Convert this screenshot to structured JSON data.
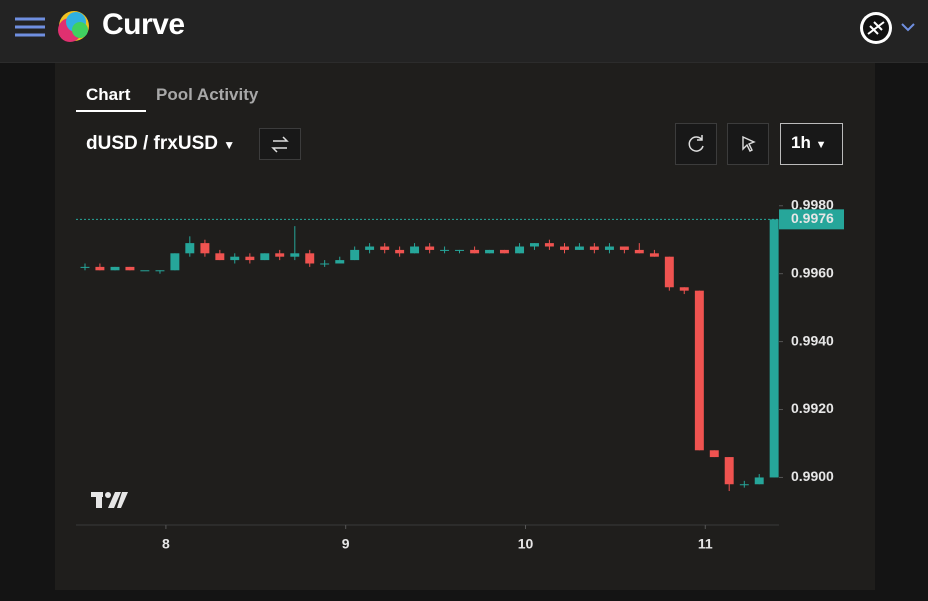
{
  "header": {
    "brand": "Curve"
  },
  "tabs": [
    "Chart",
    "Pool Activity"
  ],
  "pair": "dUSD / frxUSD",
  "interval": "1h",
  "chart_data": {
    "type": "candlestick",
    "up_color": "#26a69a",
    "down_color": "#ef5350",
    "x": [
      7.55,
      7.633,
      7.717,
      7.8,
      7.883,
      7.967,
      8.05,
      8.133,
      8.217,
      8.3,
      8.383,
      8.467,
      8.55,
      8.633,
      8.717,
      8.8,
      8.883,
      8.967,
      9.05,
      9.133,
      9.217,
      9.3,
      9.383,
      9.467,
      9.55,
      9.633,
      9.717,
      9.8,
      9.883,
      9.967,
      10.05,
      10.133,
      10.217,
      10.3,
      10.383,
      10.467,
      10.55,
      10.633,
      10.717,
      10.8,
      10.883,
      10.967,
      11.05,
      11.133,
      11.217,
      11.3,
      11.383
    ],
    "open": [
      0.9962,
      0.9962,
      0.9961,
      0.9962,
      0.9961,
      0.9961,
      0.9961,
      0.9966,
      0.9969,
      0.9966,
      0.9964,
      0.9965,
      0.9964,
      0.9966,
      0.9965,
      0.9966,
      0.9963,
      0.9963,
      0.9964,
      0.9967,
      0.9968,
      0.9967,
      0.9966,
      0.9968,
      0.9967,
      0.9967,
      0.9967,
      0.9966,
      0.9967,
      0.9966,
      0.9968,
      0.9969,
      0.9968,
      0.9967,
      0.9968,
      0.9967,
      0.9968,
      0.9967,
      0.9966,
      0.9965,
      0.9956,
      0.9955,
      0.9908,
      0.9906,
      0.9898,
      0.9898,
      0.99
    ],
    "high": [
      0.9963,
      0.9963,
      0.9962,
      0.9962,
      0.9961,
      0.9961,
      0.9966,
      0.9971,
      0.997,
      0.9967,
      0.9966,
      0.9966,
      0.9966,
      0.9967,
      0.9974,
      0.9967,
      0.9964,
      0.9965,
      0.9968,
      0.9969,
      0.9969,
      0.9968,
      0.9969,
      0.9969,
      0.9968,
      0.9967,
      0.9968,
      0.9967,
      0.9967,
      0.9969,
      0.9969,
      0.997,
      0.9969,
      0.9969,
      0.9969,
      0.9969,
      0.9968,
      0.9969,
      0.9967,
      0.9965,
      0.9956,
      0.9955,
      0.9908,
      0.9906,
      0.9899,
      0.9901,
      0.9976
    ],
    "low": [
      0.9961,
      0.9961,
      0.9961,
      0.9961,
      0.9961,
      0.996,
      0.9961,
      0.9965,
      0.9965,
      0.9964,
      0.9963,
      0.9963,
      0.9964,
      0.9964,
      0.9964,
      0.9962,
      0.9962,
      0.9963,
      0.9964,
      0.9966,
      0.9966,
      0.9965,
      0.9966,
      0.9966,
      0.9966,
      0.9966,
      0.9966,
      0.9966,
      0.9966,
      0.9966,
      0.9967,
      0.9967,
      0.9966,
      0.9967,
      0.9966,
      0.9966,
      0.9966,
      0.9966,
      0.9965,
      0.9955,
      0.9954,
      0.9908,
      0.9906,
      0.9896,
      0.9897,
      0.9898,
      0.99
    ],
    "close": [
      0.9962,
      0.9961,
      0.9962,
      0.9961,
      0.9961,
      0.9961,
      0.9966,
      0.9969,
      0.9966,
      0.9964,
      0.9965,
      0.9964,
      0.9966,
      0.9965,
      0.9966,
      0.9963,
      0.9963,
      0.9964,
      0.9967,
      0.9968,
      0.9967,
      0.9966,
      0.9968,
      0.9967,
      0.9967,
      0.9967,
      0.9966,
      0.9967,
      0.9966,
      0.9968,
      0.9969,
      0.9968,
      0.9967,
      0.9968,
      0.9967,
      0.9968,
      0.9967,
      0.9966,
      0.9965,
      0.9956,
      0.9955,
      0.9908,
      0.9906,
      0.9898,
      0.9898,
      0.99,
      0.9976
    ],
    "last_price": 0.9976,
    "xlim": [
      7.5,
      11.41
    ],
    "xticks": [
      8,
      9,
      10,
      11
    ],
    "ylim": [
      0.9886,
      0.9992
    ],
    "yticks": [
      {
        "value": 0.998,
        "label": "0.9980"
      },
      {
        "value": 0.996,
        "label": "0.9960"
      },
      {
        "value": 0.994,
        "label": "0.9940"
      },
      {
        "value": 0.992,
        "label": "0.9920"
      },
      {
        "value": 0.99,
        "label": "0.9900"
      }
    ]
  }
}
